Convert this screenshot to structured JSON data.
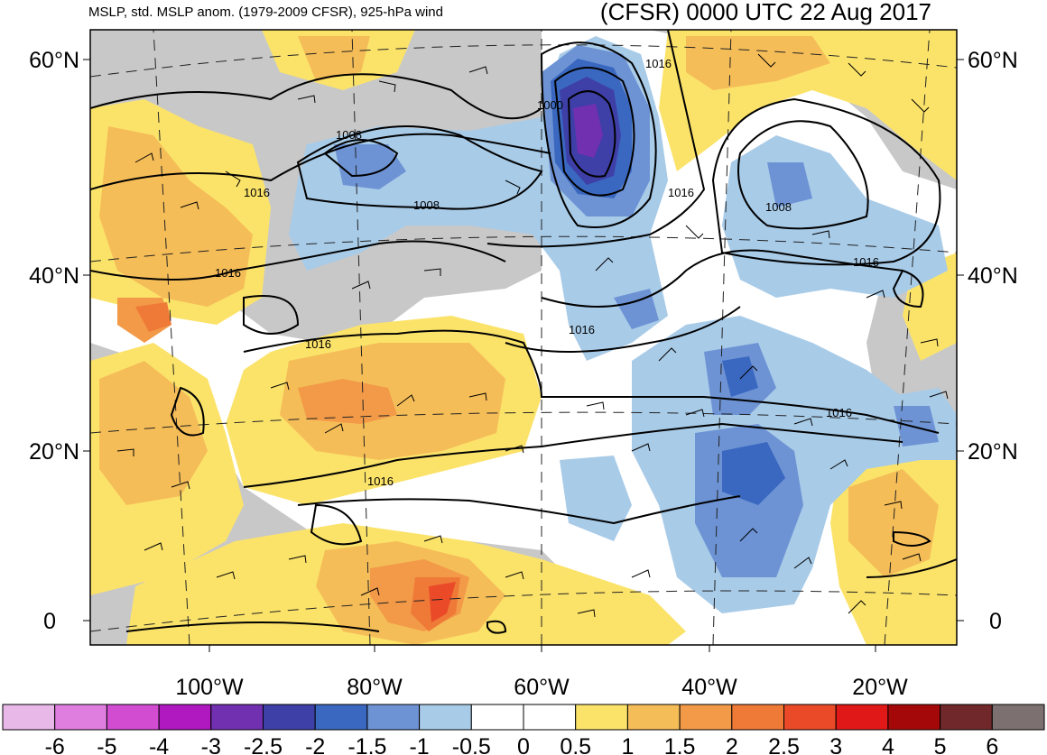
{
  "header": {
    "left_title": "MSLP, std. MSLP anom. (1979-2009 CFSR), 925-hPa wind",
    "right_title": "(CFSR) 0000 UTC 22 Aug 2017"
  },
  "axes": {
    "lat_labels": [
      "60°N",
      "40°N",
      "20°N",
      "0"
    ],
    "lon_labels": [
      "100°W",
      "80°W",
      "60°W",
      "40°W",
      "20°W"
    ]
  },
  "isobar_labels": [
    "1000",
    "1008",
    "1008",
    "1008",
    "1016",
    "1016",
    "1016",
    "1016",
    "1016",
    "1016",
    "1016",
    "1016",
    "1016"
  ],
  "colorbar": {
    "labels": [
      "-6",
      "-5",
      "-4",
      "-3",
      "-2.5",
      "-2",
      "-1.5",
      "-1",
      "-0.5",
      "0",
      "0.5",
      "1",
      "1.5",
      "2",
      "2.5",
      "3",
      "4",
      "5",
      "6"
    ],
    "colors": [
      "#e8b8e8",
      "#e07ee0",
      "#d24cd2",
      "#b018c0",
      "#7030b0",
      "#3f3fa8",
      "#3a68c0",
      "#6d93d4",
      "#a8cbe8",
      "#ffffff",
      "#ffffff",
      "#fbe36a",
      "#f5bd58",
      "#f29a48",
      "#ef7a38",
      "#ea4a28",
      "#e01818",
      "#a40808",
      "#70282a",
      "#7c7070"
    ]
  }
}
